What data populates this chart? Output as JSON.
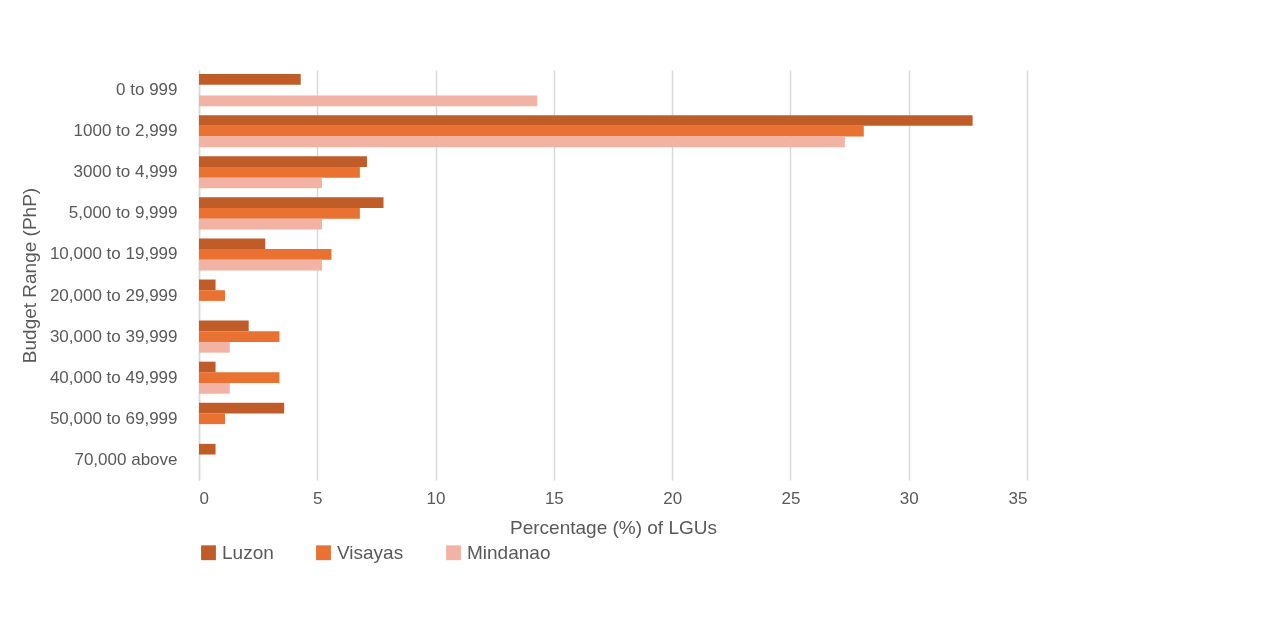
{
  "chart_data": {
    "type": "bar",
    "orientation": "horizontal",
    "xlabel": "Percentage (%) of LGUs",
    "ylabel": "Budget Range (PhP)",
    "categories": [
      "0 to 999",
      "1000 to 2,999",
      "3000 to 4,999",
      "5,000 to 9,999",
      "10,000 to 19,999",
      "20,000 to 29,999",
      "30,000 to 39,999",
      "40,000 to 49,999",
      "50,000 to 69,999",
      "70,000 above"
    ],
    "series": [
      {
        "name": "Luzon",
        "color": "#c05c28",
        "values": [
          4.3,
          32.7,
          7.1,
          7.8,
          2.8,
          0.7,
          2.1,
          0.7,
          3.6,
          0.7
        ]
      },
      {
        "name": "Visayas",
        "color": "#e97132",
        "values": [
          0,
          28.1,
          6.8,
          6.8,
          5.6,
          1.1,
          3.4,
          3.4,
          1.1,
          0
        ]
      },
      {
        "name": "Mindanao",
        "color": "#f2b3a5",
        "values": [
          14.3,
          27.3,
          5.2,
          5.2,
          5.2,
          0,
          1.3,
          1.3,
          0,
          0
        ]
      }
    ],
    "xlim": [
      0,
      35
    ],
    "xticks": [
      0,
      5,
      10,
      15,
      20,
      25,
      30,
      35
    ],
    "grid": "x",
    "legend": "bottom"
  }
}
